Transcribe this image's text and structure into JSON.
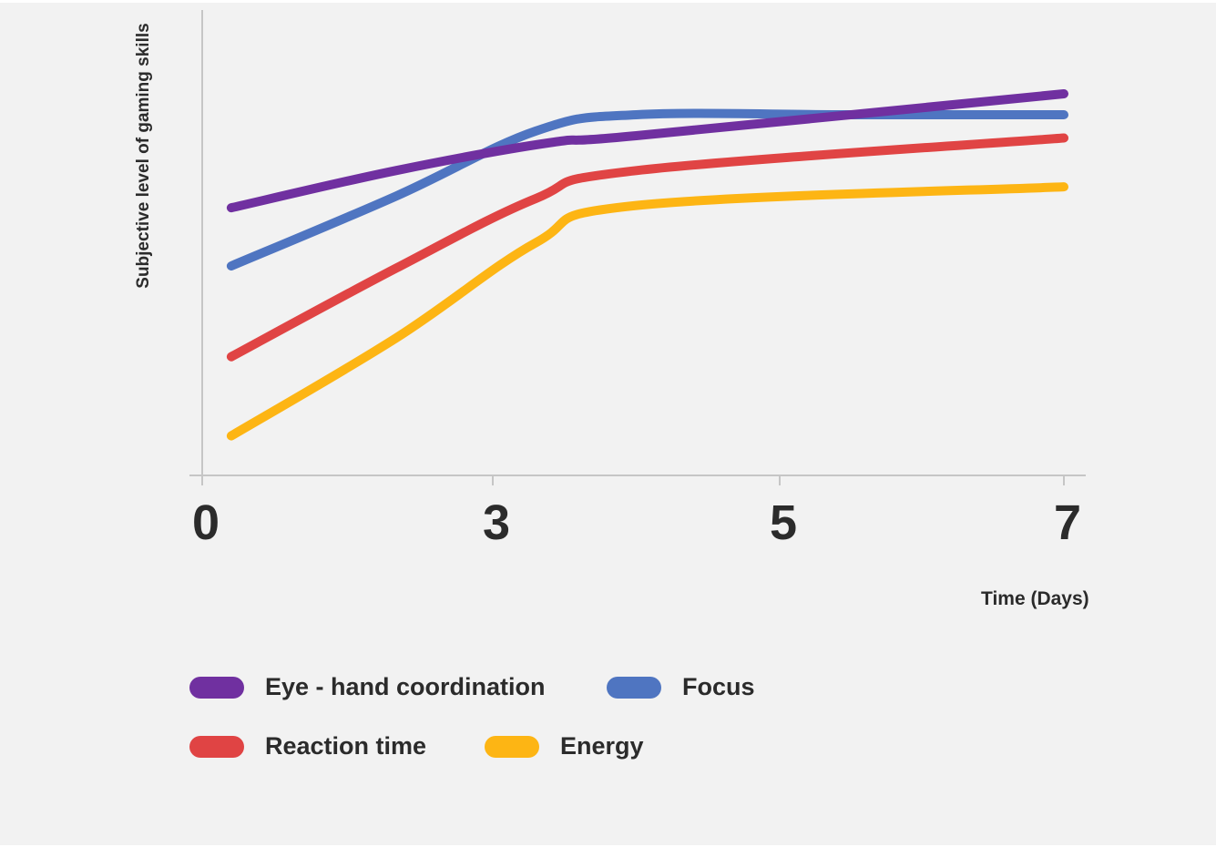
{
  "chart_data": {
    "type": "line",
    "ylabel": "Subjective level of gaming skills",
    "xlabel": "Time (Days)",
    "x_ticks": [
      "0",
      "3",
      "5",
      "7"
    ],
    "series": [
      {
        "name": "Eye - hand coordination",
        "color": "#7030a0",
        "points": [
          [
            0.3,
            5.75
          ],
          [
            2.0,
            6.55
          ],
          [
            3.4,
            7.15
          ],
          [
            4.0,
            7.3
          ],
          [
            7.0,
            8.2
          ]
        ]
      },
      {
        "name": "Focus",
        "color": "#4f75c1",
        "points": [
          [
            0.3,
            4.5
          ],
          [
            2.0,
            6.0
          ],
          [
            3.3,
            7.4
          ],
          [
            4.0,
            7.75
          ],
          [
            5.5,
            7.75
          ],
          [
            7.0,
            7.75
          ]
        ]
      },
      {
        "name": "Reaction time",
        "color": "#e04444",
        "points": [
          [
            0.3,
            2.55
          ],
          [
            2.0,
            4.45
          ],
          [
            3.3,
            5.95
          ],
          [
            4.0,
            6.55
          ],
          [
            7.0,
            7.25
          ]
        ]
      },
      {
        "name": "Energy",
        "color": "#fdb514",
        "points": [
          [
            0.3,
            0.85
          ],
          [
            2.0,
            2.95
          ],
          [
            3.3,
            5.0
          ],
          [
            4.0,
            5.8
          ],
          [
            7.0,
            6.2
          ]
        ]
      }
    ],
    "ylim": [
      0,
      10
    ],
    "grid": false,
    "legend_position": "bottom"
  }
}
